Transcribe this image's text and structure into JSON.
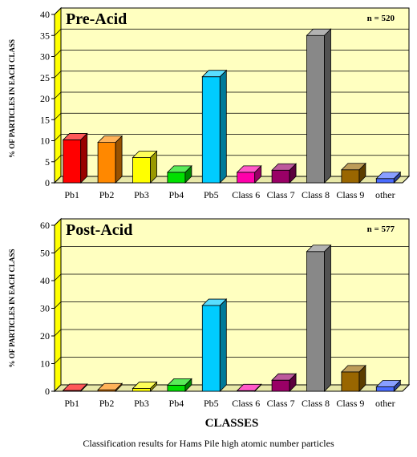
{
  "chart_data": [
    {
      "type": "bar",
      "title": "Pre-Acid",
      "annotation": "n = 520",
      "ylabel": "% OF PARTICLES IN EACH CLASS",
      "xlabel": "",
      "categories": [
        "Pb1",
        "Pb2",
        "Pb3",
        "Pb4",
        "Pb5",
        "Class 6",
        "Class 7",
        "Class 8",
        "Class 9",
        "other"
      ],
      "values": [
        10.2,
        9.6,
        6.0,
        2.5,
        25.2,
        2.5,
        3.0,
        35.0,
        3.1,
        1.0
      ],
      "ylim": [
        0,
        40
      ],
      "yticks": [
        0,
        5,
        10,
        15,
        20,
        25,
        30,
        35,
        40
      ],
      "colors": [
        "#ff0000",
        "#ff8800",
        "#ffff00",
        "#00e000",
        "#00ccff",
        "#ff00aa",
        "#990066",
        "#888888",
        "#996600",
        "#4a6cff"
      ],
      "grid": true,
      "background": "#ffffc0"
    },
    {
      "type": "bar",
      "title": "Post-Acid",
      "annotation": "n = 577",
      "ylabel": "% OF PARTICLES IN EACH CLASS",
      "xlabel": "CLASSES",
      "categories": [
        "Pb1",
        "Pb2",
        "Pb3",
        "Pb4",
        "Pb5",
        "Class 6",
        "Class 7",
        "Class 8",
        "Class 9",
        "other"
      ],
      "values": [
        0.3,
        0.5,
        1.0,
        2.2,
        31.0,
        0.2,
        4.0,
        50.5,
        7.0,
        1.6
      ],
      "ylim": [
        0,
        60
      ],
      "yticks": [
        0,
        10,
        20,
        30,
        40,
        50,
        60
      ],
      "colors": [
        "#ff0000",
        "#ff8800",
        "#ffff00",
        "#00e000",
        "#00ccff",
        "#ff00aa",
        "#990066",
        "#888888",
        "#996600",
        "#4a6cff"
      ],
      "grid": true,
      "background": "#ffffc0"
    }
  ],
  "caption": "Classification results for Hams Pile high atomic number particles"
}
